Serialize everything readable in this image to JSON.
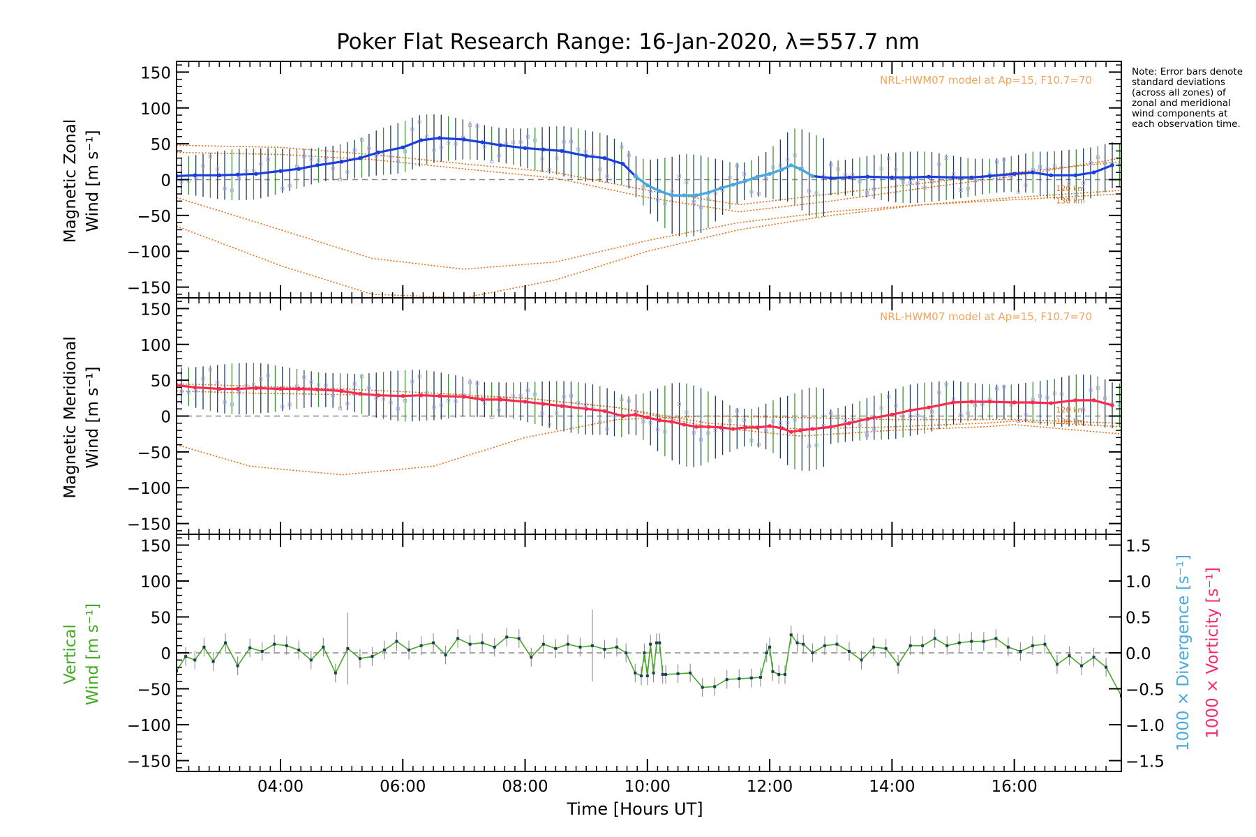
{
  "title": "Poker Flat Research Range: 16-Jan-2020, λ=557.7 nm",
  "note": "Note: Error bars denote standard deviations (across all zones) of zonal and meridional wind components at each observation time.",
  "model_label": "NRL-HWM07 model at Ap=15, F10.7=70",
  "altitude_labels": [
    "120 km",
    "130 km"
  ],
  "x_axis": {
    "label": "Time [Hours UT]",
    "range_hours": [
      2.3,
      17.75
    ],
    "ticks": [
      "04:00",
      "06:00",
      "08:00",
      "10:00",
      "12:00",
      "14:00",
      "16:00"
    ],
    "tick_hours": [
      4,
      6,
      8,
      10,
      12,
      14,
      16
    ]
  },
  "colors": {
    "zonal": "#1a3ee0",
    "zonal_light": "#4aa8e0",
    "meridional": "#ff2a52",
    "vertical": "#44aa22",
    "model": "#ee6a10",
    "samples": "#a9a9e3",
    "errorbar": "#1d3d57",
    "divergence": "#4aa8e0",
    "vorticity": "#ff2a6a"
  },
  "panels": [
    {
      "id": "zonal",
      "ylabel_lines": [
        "Magnetic Zonal",
        "Wind [m s⁻¹]"
      ],
      "yticks": [
        "150",
        "100",
        "50",
        "0",
        "−50",
        "−100",
        "−150"
      ],
      "yrange": [
        -165,
        165
      ],
      "show_model_label": true
    },
    {
      "id": "meridional",
      "ylabel_lines": [
        "Magnetic Meridional",
        "Wind [m s⁻¹]"
      ],
      "yticks": [
        "150",
        "100",
        "50",
        "0",
        "−50",
        "−100",
        "−150"
      ],
      "yrange": [
        -165,
        165
      ],
      "show_model_label": true
    },
    {
      "id": "vertical",
      "ylabel_lines": [
        "Vertical",
        "Wind [m s⁻¹]"
      ],
      "yticks": [
        "150",
        "100",
        "50",
        "0",
        "−50",
        "−100",
        "−150"
      ],
      "yrange": [
        -165,
        165
      ],
      "right_axis": {
        "yticks": [
          "1.5",
          "1.0",
          "0.5",
          "0.0",
          "−0.5",
          "−1.0",
          "−1.5"
        ],
        "label_divergence": "1000 × Divergence [s⁻¹]",
        "label_vorticity": "1000 × Vorticity [s⁻¹]"
      }
    }
  ],
  "chart_data": [
    {
      "type": "line",
      "title": "Magnetic Zonal Wind",
      "xlabel": "Time [Hours UT]",
      "ylabel": "Magnetic Zonal Wind [m s⁻¹]",
      "ylim": [
        -165,
        165
      ],
      "series": [
        {
          "x": [
            2.3,
            2.6,
            3.0,
            3.3,
            3.6,
            4.0,
            4.3,
            4.6,
            5.0,
            5.3,
            5.6,
            6.0,
            6.3,
            6.6,
            7.0,
            7.3,
            7.6,
            8.0,
            8.3,
            8.6,
            9.0,
            9.3,
            9.6,
            9.8,
            10.0,
            10.2,
            10.4,
            10.6,
            10.8,
            11.0,
            11.2,
            11.4,
            11.6,
            11.8,
            12.0,
            12.2,
            12.35,
            12.5,
            12.7,
            13.0,
            13.3,
            13.6,
            14.0,
            14.3,
            14.6,
            15.0,
            15.3,
            15.6,
            16.0,
            16.3,
            16.6,
            17.0,
            17.3,
            17.6
          ],
          "values": [
            5,
            6,
            6,
            7,
            8,
            12,
            15,
            20,
            25,
            30,
            38,
            45,
            55,
            58,
            56,
            52,
            48,
            44,
            42,
            40,
            33,
            30,
            22,
            5,
            -8,
            -16,
            -22,
            -22,
            -22,
            -18,
            -12,
            -7,
            -2,
            4,
            8,
            14,
            20,
            15,
            5,
            2,
            3,
            4,
            3,
            3,
            4,
            3,
            3,
            5,
            8,
            10,
            6,
            6,
            10,
            20
          ]
        }
      ],
      "models": [
        {
          "name": "120 km",
          "x": [
            2.3,
            4.0,
            5.5,
            7.0,
            8.5,
            10.0,
            11.5,
            13.0,
            14.5,
            16.0,
            17.75
          ],
          "values": [
            -65,
            -120,
            -160,
            -165,
            -140,
            -100,
            -70,
            -50,
            -35,
            -25,
            -15
          ]
        },
        {
          "name": "130 km",
          "x": [
            2.3,
            4.0,
            5.5,
            7.0,
            8.5,
            10.0,
            11.5,
            13.0,
            14.5,
            16.0,
            17.75
          ],
          "values": [
            -25,
            -70,
            -110,
            -125,
            -115,
            -85,
            -60,
            -45,
            -35,
            -28,
            -20
          ]
        },
        {
          "name": "model",
          "x": [
            2.3,
            4.0,
            5.5,
            7.0,
            8.5,
            10.0,
            11.5,
            13.0,
            14.5,
            16.0,
            17.75
          ],
          "values": [
            48,
            45,
            35,
            22,
            10,
            -15,
            -35,
            -20,
            -5,
            10,
            25
          ]
        },
        {
          "name": "model",
          "x": [
            2.3,
            4.0,
            5.5,
            7.0,
            8.5,
            10.0,
            11.5,
            13.0,
            14.5,
            16.0,
            17.75
          ],
          "values": [
            38,
            35,
            28,
            15,
            2,
            -25,
            -45,
            -30,
            -12,
            5,
            30
          ]
        }
      ]
    },
    {
      "type": "line",
      "title": "Magnetic Meridional Wind",
      "xlabel": "Time [Hours UT]",
      "ylabel": "Magnetic Meridional Wind [m s⁻¹]",
      "ylim": [
        -165,
        165
      ],
      "series": [
        {
          "x": [
            2.3,
            2.6,
            3.0,
            3.3,
            3.6,
            4.0,
            4.3,
            4.6,
            5.0,
            5.3,
            5.6,
            6.0,
            6.3,
            6.6,
            7.0,
            7.3,
            7.6,
            8.0,
            8.3,
            8.6,
            9.0,
            9.3,
            9.6,
            9.8,
            10.0,
            10.2,
            10.4,
            10.6,
            10.8,
            11.0,
            11.2,
            11.4,
            11.6,
            11.8,
            12.0,
            12.2,
            12.35,
            12.5,
            12.7,
            13.0,
            13.3,
            13.6,
            14.0,
            14.3,
            14.6,
            15.0,
            15.3,
            15.6,
            16.0,
            16.3,
            16.6,
            17.0,
            17.3,
            17.6
          ],
          "values": [
            43,
            40,
            38,
            38,
            39,
            38,
            38,
            37,
            35,
            31,
            29,
            28,
            29,
            28,
            27,
            23,
            23,
            20,
            17,
            14,
            10,
            7,
            0,
            2,
            -2,
            -6,
            -8,
            -12,
            -15,
            -15,
            -16,
            -18,
            -16,
            -16,
            -14,
            -17,
            -22,
            -20,
            -18,
            -15,
            -10,
            -4,
            2,
            8,
            12,
            19,
            20,
            20,
            19,
            19,
            18,
            22,
            22,
            15
          ]
        }
      ],
      "models": [
        {
          "name": "120 km",
          "x": [
            2.3,
            3.5,
            5.0,
            6.5,
            8.0,
            9.5,
            11.0,
            12.5,
            14.0,
            15.5,
            16.0,
            17.75
          ],
          "values": [
            -40,
            -70,
            -82,
            -70,
            -30,
            -5,
            0,
            -2,
            -5,
            -5,
            -5,
            -10
          ]
        },
        {
          "name": "130 km",
          "x": [
            2.3,
            3.5,
            5.0,
            6.5,
            8.0,
            9.5,
            11.0,
            12.5,
            14.0,
            15.5,
            16.0,
            17.75
          ],
          "values": [
            45,
            42,
            38,
            32,
            25,
            12,
            -10,
            -18,
            -15,
            -10,
            -7,
            -15
          ]
        },
        {
          "name": "model",
          "x": [
            2.3,
            3.5,
            5.0,
            6.5,
            8.0,
            9.5,
            11.0,
            12.5,
            14.0,
            15.5,
            16.0,
            17.75
          ],
          "values": [
            35,
            32,
            30,
            28,
            25,
            12,
            -15,
            -28,
            -20,
            -15,
            -12,
            -25
          ]
        }
      ]
    },
    {
      "type": "line",
      "title": "Vertical Wind",
      "xlabel": "Time [Hours UT]",
      "ylabel": "Vertical Wind [m s⁻¹]",
      "ylim": [
        -165,
        165
      ],
      "series": [
        {
          "x": [
            2.3,
            2.45,
            2.6,
            2.75,
            2.9,
            3.1,
            3.3,
            3.5,
            3.7,
            3.9,
            4.1,
            4.3,
            4.5,
            4.7,
            4.9,
            5.1,
            5.3,
            5.5,
            5.7,
            5.9,
            6.1,
            6.3,
            6.5,
            6.7,
            6.9,
            7.1,
            7.3,
            7.5,
            7.7,
            7.9,
            8.1,
            8.3,
            8.5,
            8.7,
            8.9,
            9.1,
            9.3,
            9.5,
            9.65,
            9.8,
            9.9,
            9.95,
            10.0,
            10.05,
            10.1,
            10.15,
            10.2,
            10.25,
            10.3,
            10.5,
            10.7,
            10.9,
            11.1,
            11.3,
            11.5,
            11.7,
            11.85,
            11.95,
            12.0,
            12.05,
            12.15,
            12.25,
            12.35,
            12.45,
            12.55,
            12.7,
            12.9,
            13.1,
            13.3,
            13.5,
            13.7,
            13.9,
            14.1,
            14.3,
            14.5,
            14.7,
            14.9,
            15.1,
            15.3,
            15.5,
            15.7,
            15.9,
            16.1,
            16.3,
            16.5,
            16.7,
            16.9,
            17.1,
            17.3,
            17.5,
            17.75
          ],
          "values": [
            -25,
            -5,
            -10,
            8,
            -12,
            14,
            -18,
            7,
            2,
            12,
            10,
            4,
            -10,
            8,
            -28,
            6,
            -8,
            -5,
            4,
            16,
            4,
            10,
            14,
            -3,
            20,
            12,
            14,
            8,
            22,
            20,
            -6,
            12,
            6,
            12,
            8,
            10,
            5,
            8,
            0,
            -28,
            -32,
            0,
            -32,
            12,
            -28,
            14,
            14,
            -30,
            -30,
            -29,
            -28,
            -48,
            -47,
            -37,
            -36,
            -35,
            -34,
            0,
            8,
            -26,
            -30,
            -30,
            25,
            14,
            12,
            0,
            10,
            12,
            2,
            -10,
            8,
            6,
            -16,
            10,
            10,
            20,
            10,
            14,
            16,
            16,
            20,
            8,
            2,
            10,
            12,
            -16,
            -4,
            -18,
            -6,
            -20,
            -60
          ]
        }
      ]
    }
  ]
}
